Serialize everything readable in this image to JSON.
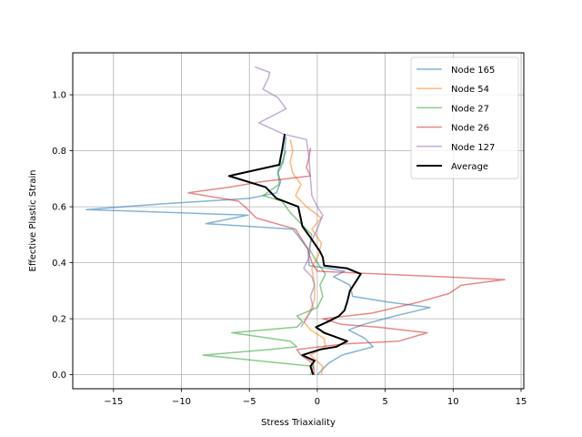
{
  "chart_data": {
    "type": "line",
    "xlabel": "Stress Triaxiality",
    "ylabel": "Effective Plastic Strain",
    "xlim": [
      -18,
      15.2
    ],
    "ylim": [
      -0.05,
      1.15
    ],
    "xticks": [
      -15,
      -10,
      -5,
      0,
      5,
      10,
      15
    ],
    "xtick_labels": [
      "−15",
      "−10",
      "−5",
      "0",
      "5",
      "10",
      "15"
    ],
    "yticks": [
      0.0,
      0.2,
      0.4,
      0.6,
      0.8,
      1.0
    ],
    "ytick_labels": [
      "0.0",
      "0.2",
      "0.4",
      "0.6",
      "0.8",
      "1.0"
    ],
    "grid": true,
    "legend_position": "top-right",
    "series": [
      {
        "name": "Node 165",
        "color": "#1f77b4",
        "opacity": 0.55,
        "width": 1.5,
        "points": [
          [
            0,
            0.0
          ],
          [
            0.2,
            0.01
          ],
          [
            0.8,
            0.04
          ],
          [
            1.8,
            0.07
          ],
          [
            4.1,
            0.1
          ],
          [
            3.5,
            0.13
          ],
          [
            2.3,
            0.16
          ],
          [
            3.4,
            0.18
          ],
          [
            5.7,
            0.21
          ],
          [
            8.3,
            0.24
          ],
          [
            5.2,
            0.26
          ],
          [
            2.6,
            0.28
          ],
          [
            2.4,
            0.32
          ],
          [
            1.2,
            0.35
          ],
          [
            2.0,
            0.37
          ],
          [
            0.8,
            0.38
          ],
          [
            -0.6,
            0.39
          ],
          [
            -0.7,
            0.45
          ],
          [
            -1.8,
            0.52
          ],
          [
            -8.2,
            0.54
          ],
          [
            -5.1,
            0.57
          ],
          [
            -17.0,
            0.59
          ],
          [
            -11.5,
            0.61
          ],
          [
            -5.0,
            0.63
          ],
          [
            -3.0,
            0.65
          ],
          [
            -2.7,
            0.69
          ],
          [
            -2.9,
            0.72
          ],
          [
            -2.5,
            0.76
          ],
          [
            -2.4,
            0.81
          ],
          [
            -2.3,
            0.85
          ]
        ]
      },
      {
        "name": "Node 54",
        "color": "#ff7f0e",
        "opacity": 0.55,
        "width": 1.5,
        "points": [
          [
            0.3,
            0.0
          ],
          [
            0.4,
            0.03
          ],
          [
            -0.5,
            0.07
          ],
          [
            0.6,
            0.1
          ],
          [
            0.5,
            0.13
          ],
          [
            -0.5,
            0.16
          ],
          [
            -1.0,
            0.19
          ],
          [
            -0.5,
            0.23
          ],
          [
            -0.2,
            0.27
          ],
          [
            -0.2,
            0.32
          ],
          [
            -0.4,
            0.38
          ],
          [
            0.1,
            0.43
          ],
          [
            0.3,
            0.47
          ],
          [
            -0.4,
            0.52
          ],
          [
            0.3,
            0.56
          ],
          [
            -0.8,
            0.6
          ],
          [
            -1.6,
            0.64
          ],
          [
            -1.2,
            0.68
          ],
          [
            -1.8,
            0.72
          ],
          [
            -2.0,
            0.76
          ],
          [
            -1.8,
            0.8
          ],
          [
            -2.0,
            0.84
          ]
        ]
      },
      {
        "name": "Node 27",
        "color": "#2ca02c",
        "opacity": 0.55,
        "width": 1.5,
        "points": [
          [
            -0.5,
            0.0
          ],
          [
            -0.3,
            0.03
          ],
          [
            -8.4,
            0.07
          ],
          [
            -3.5,
            0.09
          ],
          [
            -1.5,
            0.1
          ],
          [
            -2.0,
            0.12
          ],
          [
            -6.3,
            0.15
          ],
          [
            -1.5,
            0.17
          ],
          [
            -1.1,
            0.19
          ],
          [
            -1.5,
            0.21
          ],
          [
            0.0,
            0.24
          ],
          [
            0.4,
            0.28
          ],
          [
            0.2,
            0.32
          ],
          [
            0.6,
            0.36
          ],
          [
            0.0,
            0.4
          ],
          [
            -0.6,
            0.45
          ],
          [
            -0.4,
            0.5
          ],
          [
            -1.2,
            0.54
          ],
          [
            -2.0,
            0.58
          ],
          [
            -2.6,
            0.62
          ],
          [
            -4.0,
            0.64
          ],
          [
            -2.8,
            0.68
          ],
          [
            -2.9,
            0.73
          ],
          [
            -2.5,
            0.77
          ],
          [
            -2.3,
            0.8
          ]
        ]
      },
      {
        "name": "Node 26",
        "color": "#d62728",
        "opacity": 0.55,
        "width": 1.5,
        "points": [
          [
            -0.2,
            0.0
          ],
          [
            -0.3,
            0.04
          ],
          [
            -1.2,
            0.07
          ],
          [
            -1.5,
            0.09
          ],
          [
            2.0,
            0.11
          ],
          [
            6.0,
            0.12
          ],
          [
            8.1,
            0.15
          ],
          [
            4.4,
            0.17
          ],
          [
            1.8,
            0.18
          ],
          [
            0.4,
            0.2
          ],
          [
            4.0,
            0.22
          ],
          [
            7.5,
            0.26
          ],
          [
            9.7,
            0.29
          ],
          [
            10.6,
            0.32
          ],
          [
            13.8,
            0.34
          ],
          [
            9.2,
            0.35
          ],
          [
            0.0,
            0.37
          ],
          [
            -0.4,
            0.4
          ],
          [
            -0.7,
            0.45
          ],
          [
            -1.6,
            0.52
          ],
          [
            -4.5,
            0.56
          ],
          [
            -5.1,
            0.59
          ],
          [
            -5.8,
            0.62
          ],
          [
            -9.5,
            0.65
          ],
          [
            -6.5,
            0.67
          ],
          [
            -4.0,
            0.69
          ],
          [
            -0.5,
            0.71
          ],
          [
            -0.8,
            0.74
          ],
          [
            -0.6,
            0.78
          ],
          [
            -0.5,
            0.81
          ]
        ]
      },
      {
        "name": "Node 127",
        "color": "#9467bd",
        "opacity": 0.55,
        "width": 1.5,
        "points": [
          [
            -1.2,
            0.17
          ],
          [
            -0.8,
            0.2
          ],
          [
            -0.3,
            0.24
          ],
          [
            -0.5,
            0.28
          ],
          [
            -0.2,
            0.32
          ],
          [
            -0.4,
            0.35
          ],
          [
            -1.0,
            0.38
          ],
          [
            -0.6,
            0.42
          ],
          [
            -0.5,
            0.47
          ],
          [
            0.0,
            0.52
          ],
          [
            0.4,
            0.57
          ],
          [
            0.0,
            0.6
          ],
          [
            -0.4,
            0.64
          ],
          [
            -0.5,
            0.7
          ],
          [
            -0.6,
            0.77
          ],
          [
            -0.8,
            0.84
          ],
          [
            -2.5,
            0.86
          ],
          [
            -4.3,
            0.9
          ],
          [
            -2.3,
            0.95
          ],
          [
            -2.9,
            0.99
          ],
          [
            -4.0,
            1.02
          ],
          [
            -3.6,
            1.06
          ],
          [
            -3.5,
            1.08
          ],
          [
            -4.6,
            1.1
          ]
        ]
      },
      {
        "name": "Average",
        "color": "#000000",
        "opacity": 1.0,
        "width": 2.0,
        "points": [
          [
            -0.3,
            0.0
          ],
          [
            -0.5,
            0.03
          ],
          [
            -0.2,
            0.05
          ],
          [
            -1.1,
            0.07
          ],
          [
            0.2,
            0.09
          ],
          [
            1.4,
            0.1
          ],
          [
            2.2,
            0.12
          ],
          [
            0.5,
            0.15
          ],
          [
            -0.1,
            0.17
          ],
          [
            0.8,
            0.19
          ],
          [
            1.6,
            0.21
          ],
          [
            2.0,
            0.23
          ],
          [
            2.2,
            0.26
          ],
          [
            2.4,
            0.3
          ],
          [
            3.2,
            0.36
          ],
          [
            2.2,
            0.38
          ],
          [
            0.5,
            0.39
          ],
          [
            0.4,
            0.42
          ],
          [
            0.2,
            0.44
          ],
          [
            -0.5,
            0.49
          ],
          [
            -1.1,
            0.53
          ],
          [
            -1.4,
            0.6
          ],
          [
            -3.0,
            0.63
          ],
          [
            -3.8,
            0.67
          ],
          [
            -6.5,
            0.71
          ],
          [
            -2.8,
            0.75
          ],
          [
            -2.6,
            0.8
          ],
          [
            -2.4,
            0.86
          ]
        ]
      }
    ]
  }
}
